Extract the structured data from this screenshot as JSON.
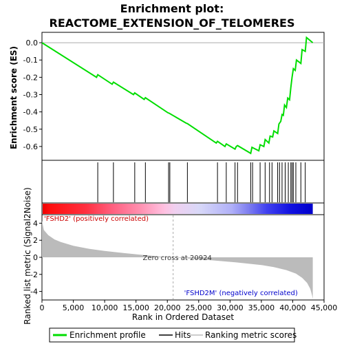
{
  "chart_data": {
    "type": "line",
    "title_line1": "Enrichment plot:",
    "title_line2": "REACTOME_EXTENSION_OF_TELOMERES",
    "ylabel_top": "Enrichment score (ES)",
    "ylabel_bottom": "Ranked list metric (Signal2Noise)",
    "xlabel": "Rank in Ordered Dataset",
    "xlim": [
      0,
      45000
    ],
    "x_ticks": [
      0,
      5000,
      10000,
      15000,
      20000,
      25000,
      30000,
      35000,
      40000,
      45000
    ],
    "x_tick_labels": [
      "0",
      "5,000",
      "10,000",
      "15,000",
      "20,000",
      "25,000",
      "30,000",
      "35,000",
      "40,000",
      "45,000"
    ],
    "es_ylim": [
      -0.68,
      0.06
    ],
    "es_ticks": [
      0.0,
      -0.1,
      -0.2,
      -0.3,
      -0.4,
      -0.5,
      -0.6
    ],
    "es_tick_labels": [
      "0.0",
      "-0.1",
      "-0.2",
      "-0.3",
      "-0.4",
      "-0.5",
      "-0.6"
    ],
    "metric_ylim": [
      -5,
      5
    ],
    "metric_ticks": [
      4,
      2,
      0,
      -2,
      -4
    ],
    "metric_tick_labels": [
      "4",
      "2",
      "0",
      "-2",
      "-4"
    ],
    "series": [
      {
        "name": "Enrichment profile",
        "color": "#00dd00",
        "x": [
          0,
          8700,
          8900,
          11200,
          11400,
          14600,
          14800,
          16300,
          16500,
          20100,
          20300,
          23000,
          23200,
          27800,
          28000,
          29200,
          29400,
          30800,
          31000,
          31200,
          33300,
          33500,
          34600,
          34800,
          35400,
          35600,
          36200,
          36400,
          36800,
          37000,
          37600,
          37800,
          38100,
          38300,
          38500,
          38700,
          39000,
          39200,
          39500,
          39700,
          39900,
          40100,
          40400,
          40600,
          41300,
          41500,
          42000,
          42200,
          43200
        ],
        "y": [
          0.0,
          -0.2,
          -0.185,
          -0.24,
          -0.228,
          -0.3,
          -0.29,
          -0.328,
          -0.318,
          -0.405,
          -0.408,
          -0.465,
          -0.468,
          -0.58,
          -0.57,
          -0.6,
          -0.585,
          -0.615,
          -0.6,
          -0.595,
          -0.64,
          -0.605,
          -0.625,
          -0.59,
          -0.6,
          -0.56,
          -0.58,
          -0.54,
          -0.545,
          -0.51,
          -0.525,
          -0.47,
          -0.455,
          -0.415,
          -0.42,
          -0.36,
          -0.375,
          -0.32,
          -0.33,
          -0.26,
          -0.2,
          -0.15,
          -0.16,
          -0.1,
          -0.12,
          -0.04,
          -0.05,
          0.03,
          0.0
        ]
      }
    ],
    "hits": [
      8900,
      11400,
      14800,
      16500,
      20200,
      20400,
      23200,
      28000,
      29400,
      30800,
      31200,
      33300,
      33600,
      34800,
      35600,
      36300,
      36700,
      37600,
      37900,
      38300,
      38800,
      39300,
      39700,
      39900,
      40100,
      40500,
      41300,
      42000
    ],
    "metric_profile": {
      "x": [
        0,
        300,
        1000,
        2000,
        3000,
        5000,
        7500,
        10000,
        13000,
        16000,
        19000,
        20924,
        23000,
        27000,
        31000,
        35000,
        37000,
        39000,
        40500,
        41500,
        42300,
        42800,
        43100,
        43200
      ],
      "y": [
        4.3,
        3.2,
        2.6,
        2.1,
        1.8,
        1.35,
        1.0,
        0.75,
        0.5,
        0.28,
        0.08,
        0.0,
        -0.12,
        -0.35,
        -0.6,
        -0.9,
        -1.15,
        -1.5,
        -1.9,
        -2.4,
        -3.0,
        -3.7,
        -4.5,
        -4.9
      ]
    },
    "zero_cross_rank": 20924,
    "zero_cross_label": "Zero cross at 20924",
    "pos_label": "'FSHD2' (positively correlated)",
    "neg_label": "'FSHD2M' (negatively correlated)",
    "legend": [
      {
        "label": "Enrichment profile",
        "color": "#00dd00"
      },
      {
        "label": "Hits",
        "color": "#000000"
      },
      {
        "label": "Ranking metric scores",
        "color": "#bbbbbb"
      }
    ],
    "heat_colors": {
      "pos_strong": "#ff0000",
      "pos_light": "#ffc0e0",
      "neutral": "#d8d8f8",
      "neg_strong": "#0000ff"
    }
  }
}
